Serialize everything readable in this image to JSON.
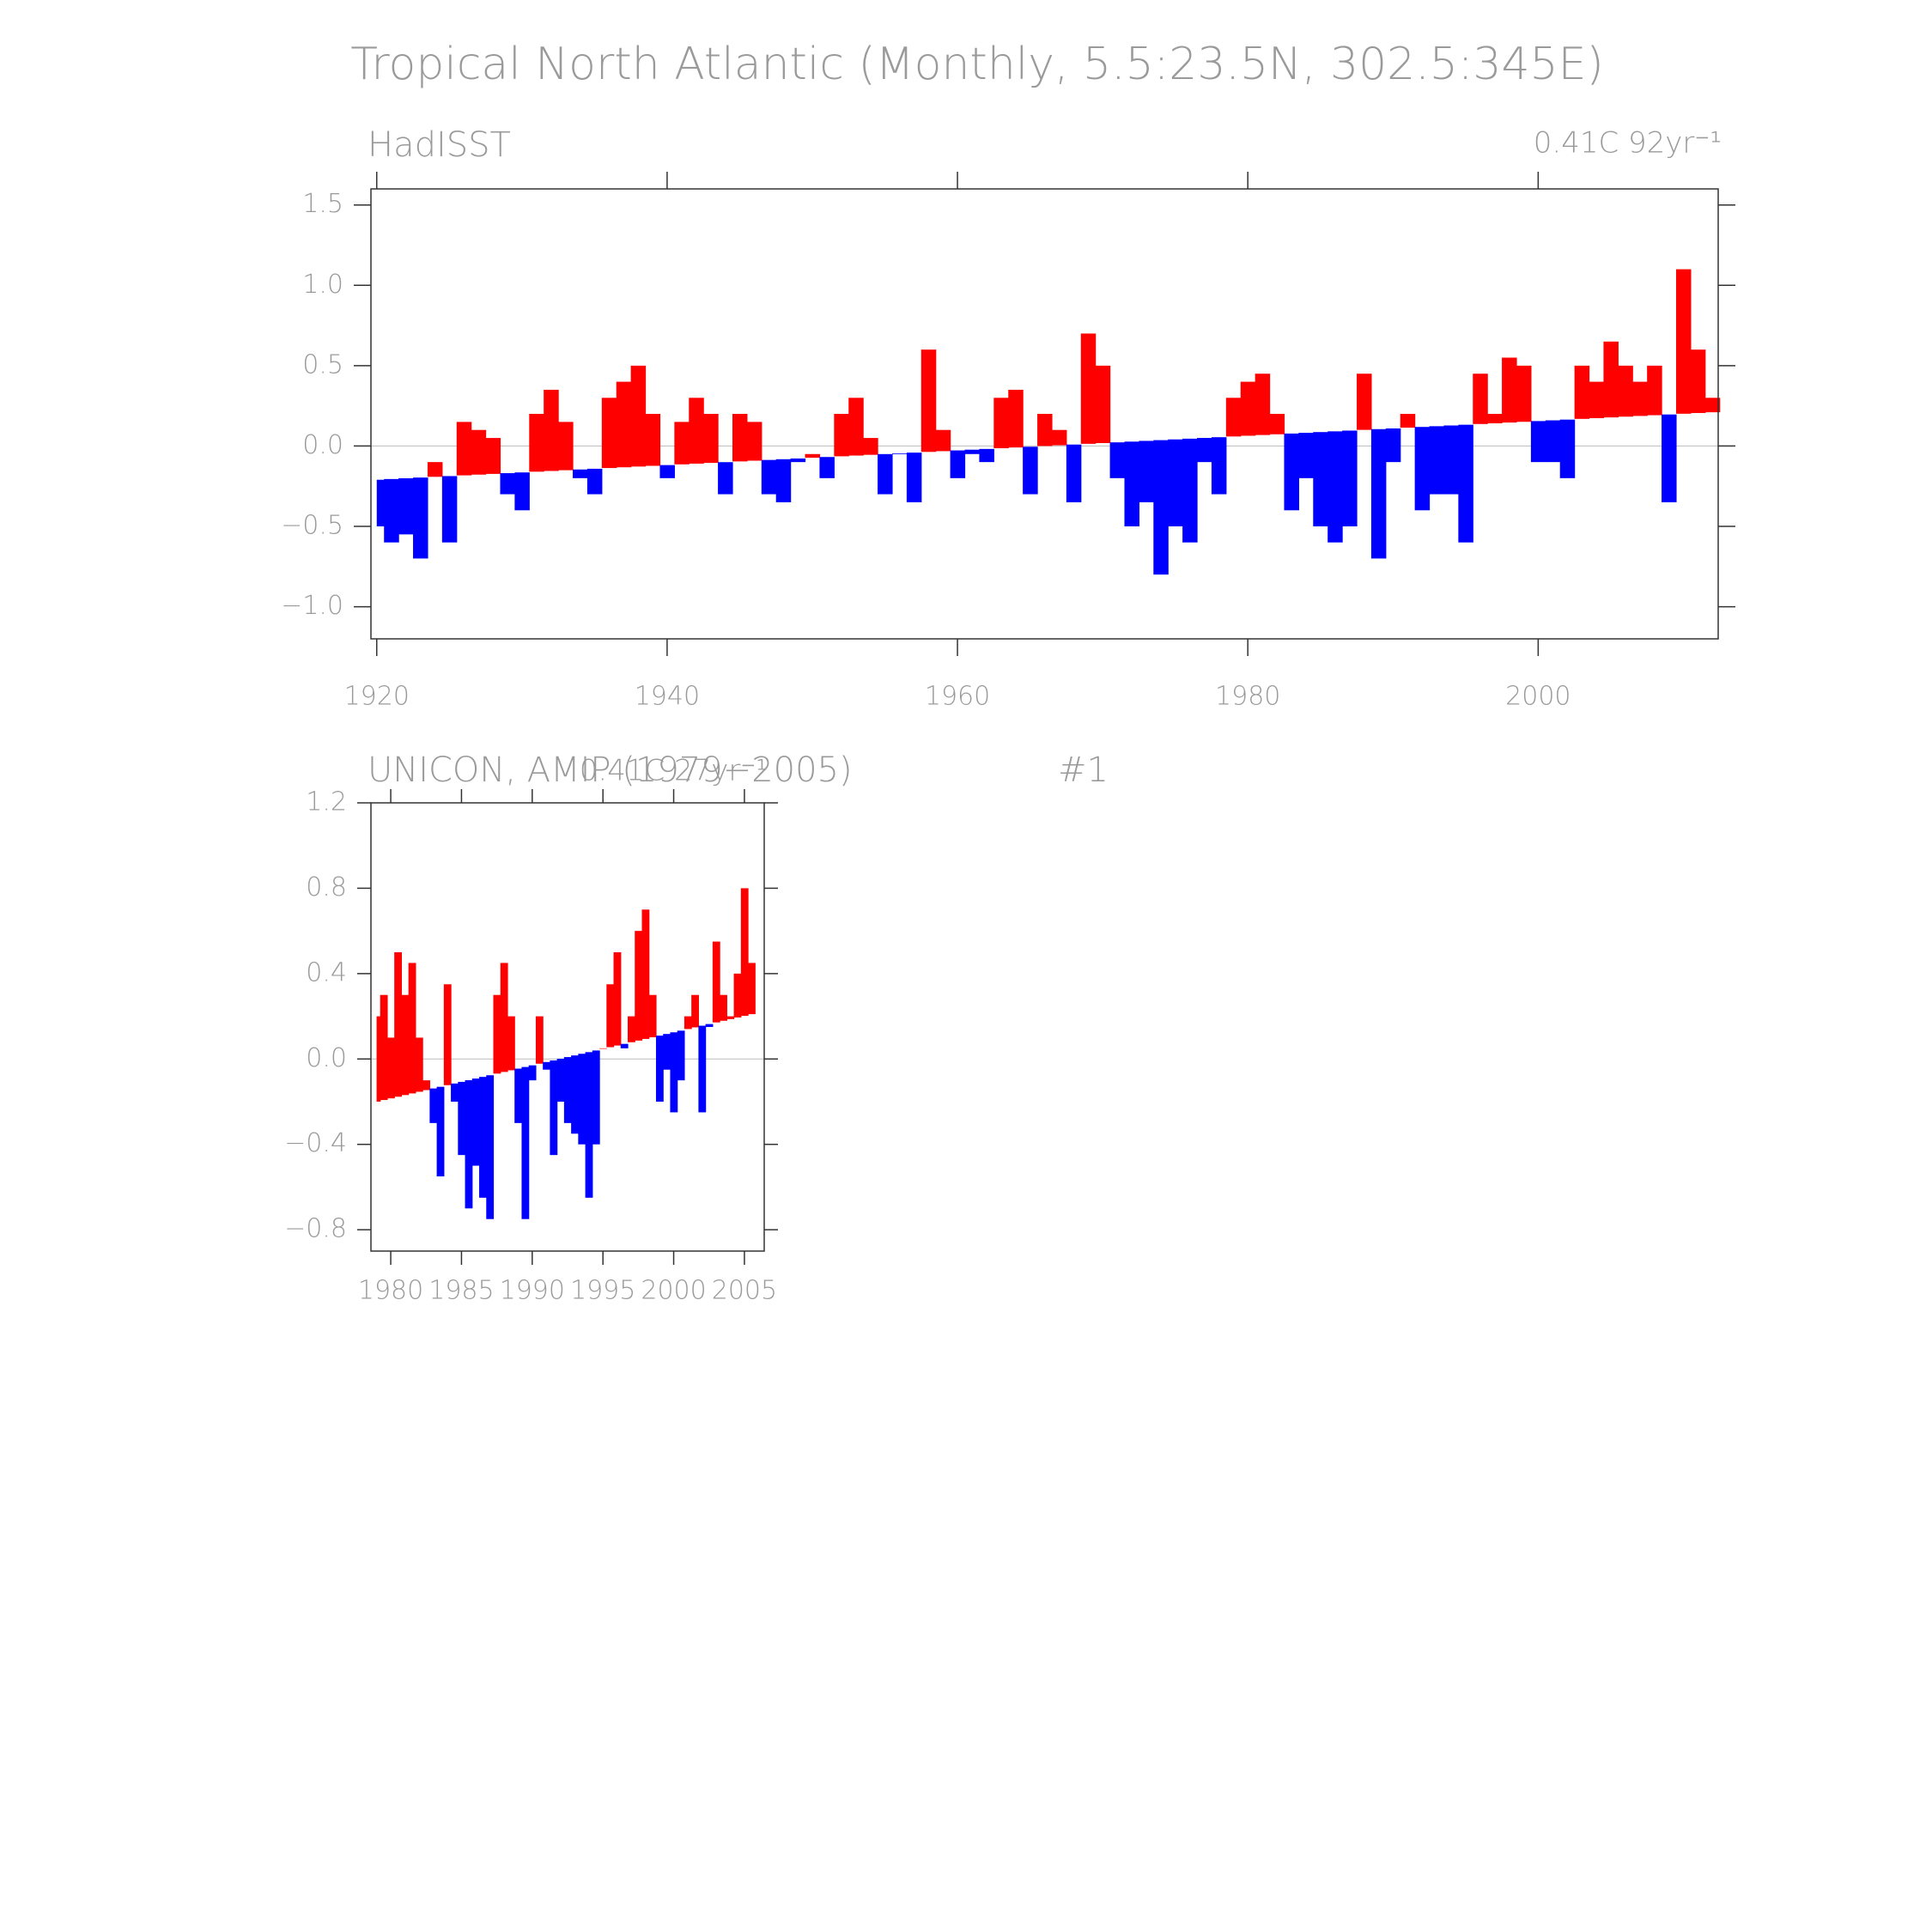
{
  "title": "Tropical North Atlantic (Monthly, 5.5:23.5N, 302.5:345E)",
  "chart_data": [
    {
      "type": "anomaly-bar",
      "subtitle_left": "HadISST",
      "subtitle_right": "0.41C 92yr⁻¹",
      "colors": {
        "above": "#ff0000",
        "below": "#0000ff"
      },
      "xlim": [
        1919.6,
        2012.4
      ],
      "ylim": [
        -1.2,
        1.6
      ],
      "xticks": [
        1920,
        1940,
        1960,
        1980,
        2000
      ],
      "yticks": [
        {
          "value": -1.0,
          "label": "−1.0"
        },
        {
          "value": -0.5,
          "label": "−0.5"
        },
        {
          "value": 0.0,
          "label": "0.0"
        },
        0.5,
        {
          "value": 1.0,
          "label": "1.0"
        },
        1.5
      ],
      "trend_x": [
        1920,
        2012
      ],
      "trend_values": [
        -0.21,
        0.21
      ],
      "x": [
        1920,
        1921,
        1922,
        1923,
        1924,
        1925,
        1926,
        1927,
        1928,
        1929,
        1930,
        1931,
        1932,
        1933,
        1934,
        1935,
        1936,
        1937,
        1938,
        1939,
        1940,
        1941,
        1942,
        1943,
        1944,
        1945,
        1946,
        1947,
        1948,
        1949,
        1950,
        1951,
        1952,
        1953,
        1954,
        1955,
        1956,
        1957,
        1958,
        1959,
        1960,
        1961,
        1962,
        1963,
        1964,
        1965,
        1966,
        1967,
        1968,
        1969,
        1970,
        1971,
        1972,
        1973,
        1974,
        1975,
        1976,
        1977,
        1978,
        1979,
        1980,
        1981,
        1982,
        1983,
        1984,
        1985,
        1986,
        1987,
        1988,
        1989,
        1990,
        1991,
        1992,
        1993,
        1994,
        1995,
        1996,
        1997,
        1998,
        1999,
        2000,
        2001,
        2002,
        2003,
        2004,
        2005,
        2006,
        2007,
        2008,
        2009,
        2010,
        2011,
        2012
      ],
      "values": [
        -0.5,
        -0.6,
        -0.55,
        -0.7,
        -0.1,
        -0.6,
        0.15,
        0.1,
        0.05,
        -0.3,
        -0.4,
        0.2,
        0.35,
        0.15,
        -0.2,
        -0.3,
        0.3,
        0.4,
        0.5,
        0.2,
        -0.2,
        0.15,
        0.3,
        0.2,
        -0.3,
        0.2,
        0.15,
        -0.3,
        -0.35,
        -0.1,
        -0.05,
        -0.2,
        0.2,
        0.3,
        0.05,
        -0.3,
        -0.05,
        -0.35,
        0.6,
        0.1,
        -0.2,
        -0.05,
        -0.1,
        0.3,
        0.35,
        -0.3,
        0.2,
        0.1,
        -0.35,
        0.7,
        0.5,
        -0.2,
        -0.5,
        -0.35,
        -0.8,
        -0.5,
        -0.6,
        -0.1,
        -0.3,
        0.3,
        0.4,
        0.45,
        0.2,
        -0.4,
        -0.2,
        -0.5,
        -0.6,
        -0.5,
        0.45,
        -0.7,
        -0.1,
        0.2,
        -0.4,
        -0.3,
        -0.3,
        -0.6,
        0.45,
        0.2,
        0.55,
        0.5,
        -0.1,
        -0.1,
        -0.2,
        0.5,
        0.4,
        0.65,
        0.5,
        0.4,
        0.5,
        -0.35,
        1.1,
        0.6,
        0.3
      ]
    },
    {
      "type": "anomaly-bar",
      "subtitle_left": "UNICON, AMIP (1979−2005)",
      "label": "#1",
      "subtitle_right": "0.41C 27yr⁻¹",
      "colors": {
        "above": "#ff0000",
        "below": "#0000ff"
      },
      "xlim": [
        1978.6,
        2006.4
      ],
      "ylim": [
        -0.9,
        1.2
      ],
      "xticks": [
        1980,
        1985,
        1990,
        1995,
        2000,
        2005
      ],
      "yticks": [
        {
          "value": -0.8,
          "label": "−0.8"
        },
        {
          "value": -0.4,
          "label": "−0.4"
        },
        {
          "value": 0.0,
          "label": "0.0"
        },
        0.4,
        0.8,
        1.2
      ],
      "trend_x": [
        1979,
        2005.5
      ],
      "trend_values": [
        -0.2,
        0.21
      ],
      "x": [
        1979,
        1979.5,
        1980,
        1980.5,
        1981,
        1981.5,
        1982,
        1982.5,
        1983,
        1983.5,
        1984,
        1984.5,
        1985,
        1985.5,
        1986,
        1986.5,
        1987,
        1987.5,
        1988,
        1988.5,
        1989,
        1989.5,
        1990,
        1990.5,
        1991,
        1991.5,
        1992,
        1992.5,
        1993,
        1993.5,
        1994,
        1994.5,
        1995,
        1995.5,
        1996,
        1996.5,
        1997,
        1997.5,
        1998,
        1998.5,
        1999,
        1999.5,
        2000,
        2000.5,
        2001,
        2001.5,
        2002,
        2002.5,
        2003,
        2003.5,
        2004,
        2004.5,
        2005,
        2005.5
      ],
      "values": [
        0.2,
        0.3,
        0.1,
        0.5,
        0.3,
        0.45,
        0.1,
        -0.1,
        -0.3,
        -0.55,
        0.35,
        -0.2,
        -0.45,
        -0.7,
        -0.5,
        -0.65,
        -0.75,
        0.3,
        0.45,
        0.2,
        -0.3,
        -0.75,
        -0.1,
        0.2,
        -0.05,
        -0.45,
        -0.2,
        -0.3,
        -0.35,
        -0.4,
        -0.65,
        -0.4,
        0.05,
        0.35,
        0.5,
        0.05,
        0.2,
        0.6,
        0.7,
        0.3,
        -0.2,
        -0.05,
        -0.25,
        -0.1,
        0.2,
        0.3,
        -0.25,
        0.15,
        0.55,
        0.3,
        0.2,
        0.4,
        0.8,
        0.45
      ]
    }
  ]
}
